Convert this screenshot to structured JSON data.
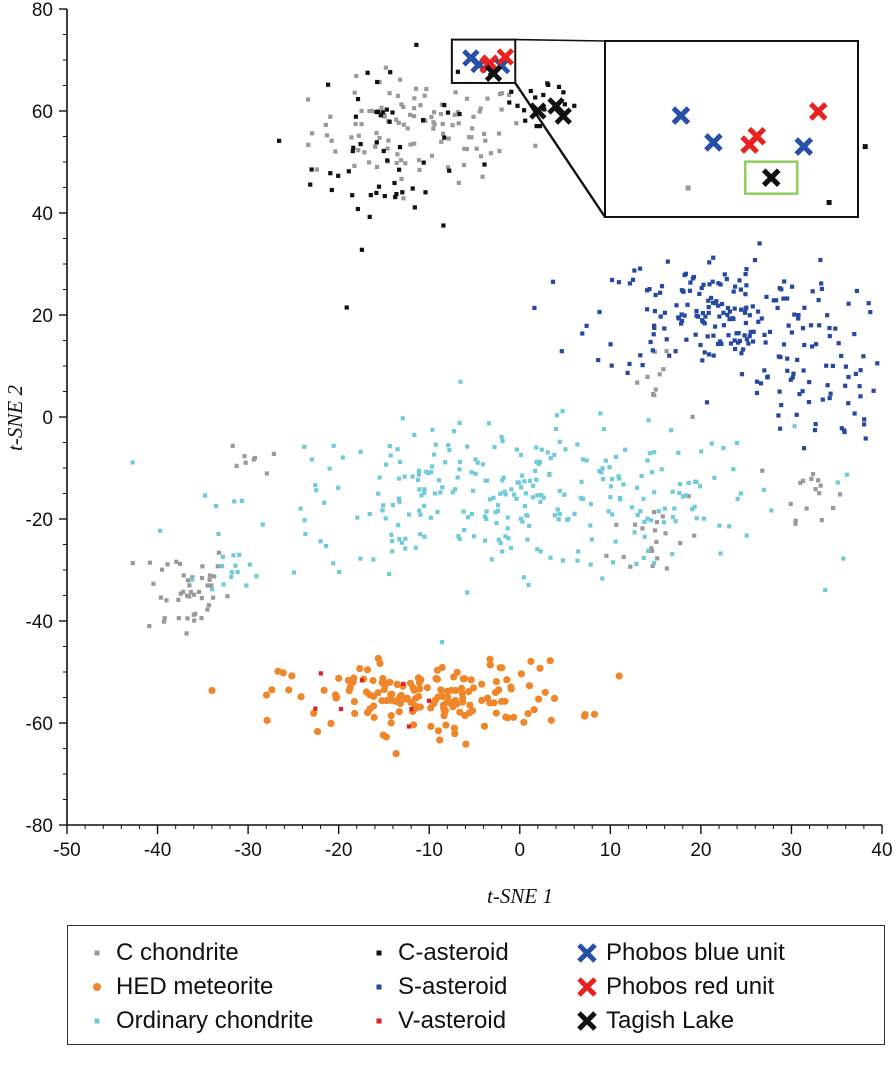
{
  "colors": {
    "c_chondrite": "#9a9a9a",
    "hed_meteorite": "#f0862a",
    "ordinary_chondrite": "#6fcbd8",
    "c_asteroid": "#111111",
    "s_asteroid": "#2548a0",
    "v_asteroid": "#e01e24",
    "phobos_blue": "#2650a8",
    "phobos_red": "#e8221f",
    "tagish_lake": "#111111",
    "inset_highlight": "#8ccc5a"
  },
  "chart_data": {
    "type": "scatter",
    "xlabel": "t-SNE 1",
    "ylabel": "t-SNE 2",
    "xlim": [
      -50,
      40
    ],
    "ylim": [
      -80,
      80
    ],
    "x_ticks": [
      "-50",
      "-40",
      "-30",
      "-20",
      "-10",
      "0",
      "10",
      "20",
      "30",
      "40"
    ],
    "y_ticks": [
      "80",
      "60",
      "40",
      "20",
      "0",
      "-20",
      "-40",
      "-60",
      "-80"
    ],
    "clusters": [
      {
        "series": "C chondrite",
        "cx": -11,
        "cy": 56,
        "sx": 6,
        "sy": 5,
        "n": 110
      },
      {
        "series": "C chondrite",
        "cx": -37,
        "cy": -34,
        "sx": 2.5,
        "sy": 5,
        "n": 45
      },
      {
        "series": "C chondrite",
        "cx": 15,
        "cy": -23,
        "sx": 2.5,
        "sy": 5,
        "n": 20
      },
      {
        "series": "C chondrite",
        "cx": 32,
        "cy": -14,
        "sx": 1.5,
        "sy": 3,
        "n": 16
      },
      {
        "series": "C chondrite",
        "cx": 15,
        "cy": 6,
        "sx": 1.5,
        "sy": 3,
        "n": 10
      },
      {
        "series": "C chondrite",
        "cx": -29,
        "cy": -8,
        "sx": 1.5,
        "sy": 2,
        "n": 8
      },
      {
        "series": "C asteroid",
        "cx": -15,
        "cy": 52,
        "sx": 4,
        "sy": 9,
        "n": 55
      },
      {
        "series": "C asteroid",
        "cx": 2,
        "cy": 62,
        "sx": 3,
        "sy": 4,
        "n": 18
      },
      {
        "series": "Ordinary chondrite",
        "cx": 0,
        "cy": -16,
        "sx": 15,
        "sy": 7,
        "n": 300
      },
      {
        "series": "Ordinary chondrite",
        "cx": -32,
        "cy": -32,
        "sx": 2,
        "sy": 3,
        "n": 12
      },
      {
        "series": "S asteroid",
        "cx": 22,
        "cy": 20,
        "sx": 7,
        "sy": 6,
        "n": 190
      },
      {
        "series": "S asteroid",
        "cx": 33,
        "cy": 5,
        "sx": 3.5,
        "sy": 5,
        "n": 50
      },
      {
        "series": "HED meteorite",
        "cx": -10,
        "cy": -55,
        "sx": 8,
        "sy": 3.5,
        "n": 170
      },
      {
        "series": "V asteroid",
        "cx": -14,
        "cy": -57,
        "sx": 5,
        "sy": 3,
        "n": 8
      }
    ],
    "series_markers": [
      {
        "name": "Phobos blue unit",
        "points": [
          [
            -5.4,
            70.4
          ],
          [
            -4.5,
            69.1
          ],
          [
            -2.0,
            68.9
          ]
        ]
      },
      {
        "name": "Phobos red unit",
        "points": [
          [
            -3.3,
            69.4
          ],
          [
            -3.5,
            69.0
          ],
          [
            -1.6,
            70.6
          ]
        ]
      },
      {
        "name": "Tagish Lake",
        "points": [
          [
            -2.9,
            67.4
          ],
          [
            2.0,
            60.0
          ],
          [
            4.0,
            61.0
          ],
          [
            4.8,
            59.0
          ]
        ]
      }
    ],
    "inset": {
      "zoom_x_range": [
        -7.5,
        -0.5
      ],
      "zoom_y_range": [
        65.5,
        74
      ],
      "phobos_blue": [
        [
          -5.4,
          70.4
        ],
        [
          -4.5,
          69.1
        ],
        [
          -2.0,
          68.9
        ]
      ],
      "phobos_red": [
        [
          -3.3,
          69.4
        ],
        [
          -3.5,
          69.0
        ],
        [
          -1.6,
          70.6
        ]
      ],
      "tagish_lake": [
        [
          -2.9,
          67.4
        ]
      ],
      "c_asteroid": [
        [
          -0.3,
          68.9
        ],
        [
          -1.3,
          66.2
        ]
      ],
      "c_chondrite": [
        [
          -5.2,
          66.9
        ]
      ]
    },
    "legend": [
      {
        "key": "c_chondrite",
        "label": "C chondrite",
        "marker": "square-small"
      },
      {
        "key": "hed_meteorite",
        "label": "HED meteorite",
        "marker": "circle"
      },
      {
        "key": "ordinary_chondrite",
        "label": "Ordinary chondrite",
        "marker": "square-small"
      },
      {
        "key": "c_asteroid",
        "label": "C-asteroid",
        "marker": "square-small"
      },
      {
        "key": "s_asteroid",
        "label": "S-asteroid",
        "marker": "square-small"
      },
      {
        "key": "v_asteroid",
        "label": "V-asteroid",
        "marker": "square-small"
      },
      {
        "key": "phobos_blue",
        "label": "Phobos blue unit",
        "marker": "cross"
      },
      {
        "key": "phobos_red",
        "label": "Phobos red unit",
        "marker": "cross"
      },
      {
        "key": "tagish_lake",
        "label": "Tagish Lake",
        "marker": "cross"
      }
    ]
  }
}
